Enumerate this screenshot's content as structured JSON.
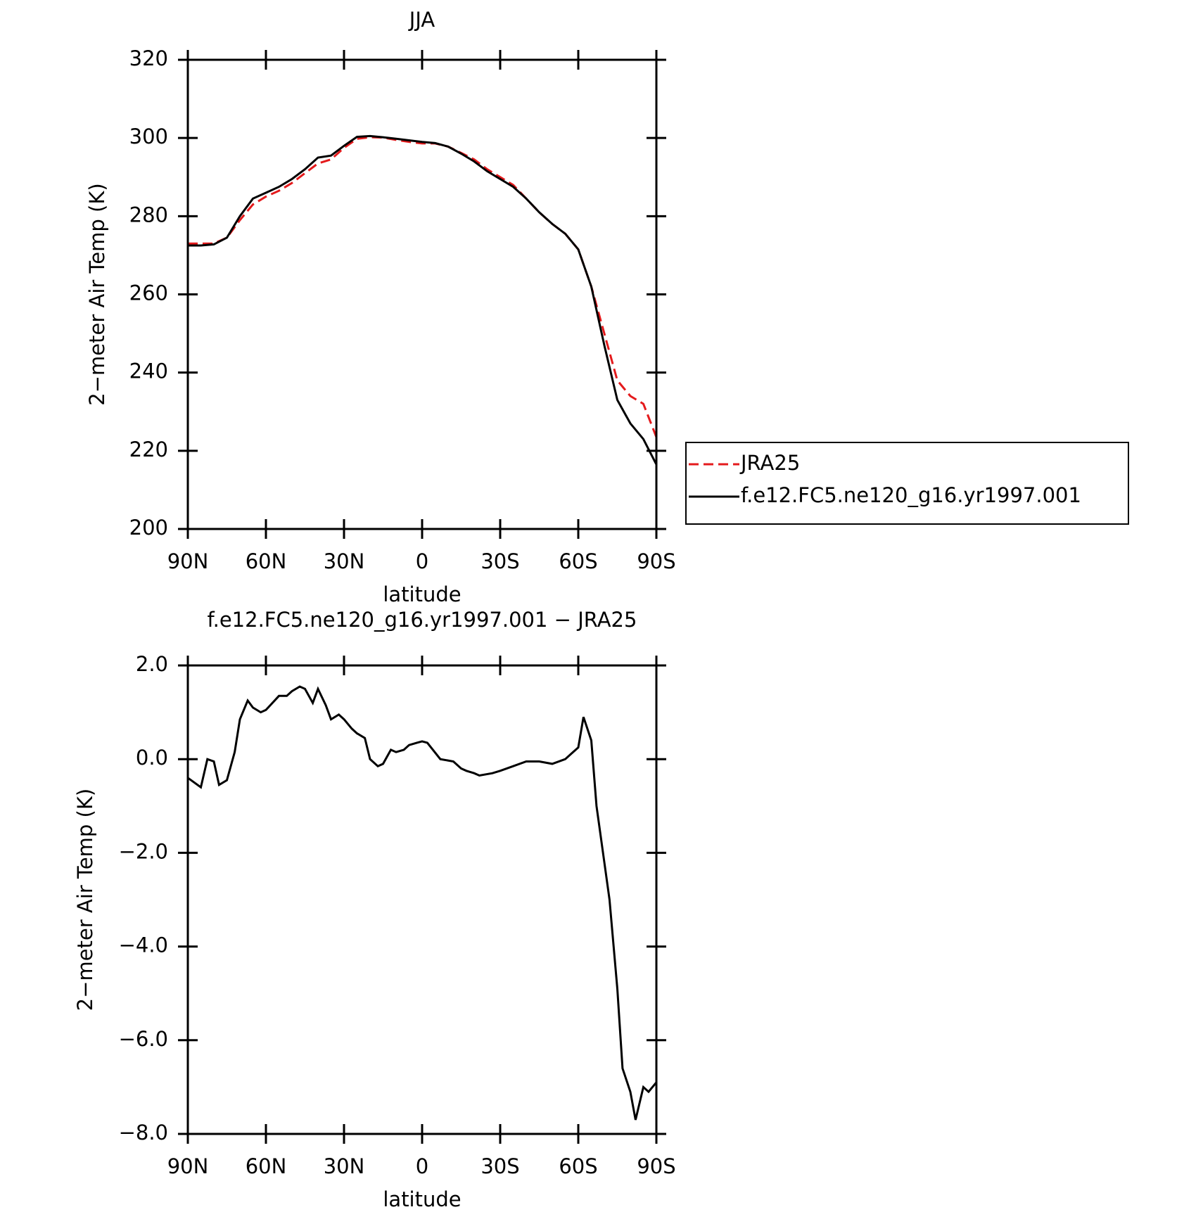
{
  "chart_data": [
    {
      "type": "line",
      "title": "JJA",
      "xlabel": "latitude",
      "ylabel": "2−meter Air Temp (K)",
      "x": [
        90,
        85,
        80,
        75,
        70,
        65,
        60,
        55,
        50,
        45,
        40,
        35,
        30,
        25,
        20,
        15,
        10,
        5,
        0,
        -5,
        -10,
        -15,
        -20,
        -25,
        -30,
        -35,
        -40,
        -45,
        -50,
        -55,
        -60,
        -65,
        -70,
        -75,
        -80,
        -85,
        -90
      ],
      "series": [
        {
          "name": "JRA25",
          "color": "#e41a1c",
          "dash": true,
          "values": [
            273,
            273,
            273,
            274.5,
            279,
            283,
            285,
            286.5,
            288.5,
            291,
            293.5,
            294.5,
            297.5,
            299.8,
            300.2,
            300.1,
            299.5,
            299,
            298.6,
            298.6,
            297.8,
            296.2,
            294.5,
            292,
            290,
            288,
            284.5,
            281,
            278,
            275.5,
            271.5,
            262,
            250,
            238,
            234,
            232,
            223.5
          ]
        },
        {
          "name": "f.e12.FC5.ne120_g16.yr1997.001",
          "color": "#000000",
          "dash": false,
          "values": [
            272.5,
            272.5,
            272.8,
            274.5,
            280,
            284.5,
            286,
            287.5,
            289.5,
            292,
            295,
            295.5,
            298,
            300.3,
            300.5,
            300.2,
            299.8,
            299.4,
            299,
            298.7,
            297.8,
            296,
            294,
            291.5,
            289.5,
            287.5,
            284.5,
            281,
            278,
            275.5,
            271.5,
            262,
            247,
            233,
            227,
            223,
            216.5
          ]
        }
      ],
      "xlim": [
        90,
        -90
      ],
      "xticks": [
        {
          "value": 90,
          "label": "90N"
        },
        {
          "value": 60,
          "label": "60N"
        },
        {
          "value": 30,
          "label": "30N"
        },
        0,
        {
          "value": -30,
          "label": "30S"
        },
        {
          "value": -60,
          "label": "60S"
        },
        {
          "value": -90,
          "label": "90S"
        }
      ],
      "ylim": [
        200,
        320
      ],
      "yticks": [
        200,
        220,
        240,
        260,
        280,
        300,
        320
      ],
      "legend": "right"
    },
    {
      "type": "line",
      "title": "f.e12.FC5.ne120_g16.yr1997.001 − JRA25",
      "xlabel": "latitude",
      "ylabel": "2−meter Air Temp (K)",
      "x": [
        90,
        85,
        82.5,
        80,
        78,
        75,
        72,
        70,
        67,
        65,
        62,
        60,
        55,
        52,
        50,
        47,
        45,
        42,
        40,
        37,
        35,
        32,
        30,
        27,
        25,
        22,
        20,
        17,
        15,
        12,
        10,
        7,
        5,
        2,
        0,
        -2,
        -7,
        -12,
        -15,
        -17,
        -20,
        -22,
        -27,
        -30,
        -35,
        -40,
        -45,
        -50,
        -55,
        -57,
        -60,
        -62,
        -65,
        -67,
        -70,
        -72,
        -75,
        -77,
        -80,
        -82,
        -85,
        -87,
        -90
      ],
      "series": [
        {
          "color": "#000000",
          "dash": false,
          "values": [
            -0.4,
            -0.6,
            0,
            -0.05,
            -0.55,
            -0.45,
            0.15,
            0.85,
            1.25,
            1.1,
            1.0,
            1.05,
            1.35,
            1.35,
            1.45,
            1.55,
            1.5,
            1.2,
            1.5,
            1.15,
            0.85,
            0.95,
            0.85,
            0.65,
            0.55,
            0.45,
            0.0,
            -0.15,
            -0.1,
            0.2,
            0.15,
            0.2,
            0.3,
            0.35,
            0.38,
            0.35,
            0.0,
            -0.05,
            -0.2,
            -0.25,
            -0.3,
            -0.35,
            -0.3,
            -0.25,
            -0.15,
            -0.05,
            -0.05,
            -0.1,
            0.0,
            0.1,
            0.25,
            0.9,
            0.4,
            -1.0,
            -2.2,
            -3.0,
            -4.9,
            -6.6,
            -7.1,
            -7.7,
            -7.0,
            -7.1,
            -6.9
          ]
        }
      ],
      "xlim": [
        90,
        -90
      ],
      "xticks": [
        {
          "value": 90,
          "label": "90N"
        },
        {
          "value": 60,
          "label": "60N"
        },
        {
          "value": 30,
          "label": "30N"
        },
        0,
        {
          "value": -30,
          "label": "30S"
        },
        {
          "value": -60,
          "label": "60S"
        },
        {
          "value": -90,
          "label": "90S"
        }
      ],
      "ylim": [
        -8,
        2
      ],
      "yticks": [
        {
          "value": -8,
          "label": "−8.0"
        },
        {
          "value": -6,
          "label": "−6.0"
        },
        {
          "value": -4,
          "label": "−4.0"
        },
        {
          "value": -2,
          "label": "−2.0"
        },
        {
          "value": 0,
          "label": "0.0"
        },
        {
          "value": 2,
          "label": "2.0"
        }
      ]
    }
  ]
}
